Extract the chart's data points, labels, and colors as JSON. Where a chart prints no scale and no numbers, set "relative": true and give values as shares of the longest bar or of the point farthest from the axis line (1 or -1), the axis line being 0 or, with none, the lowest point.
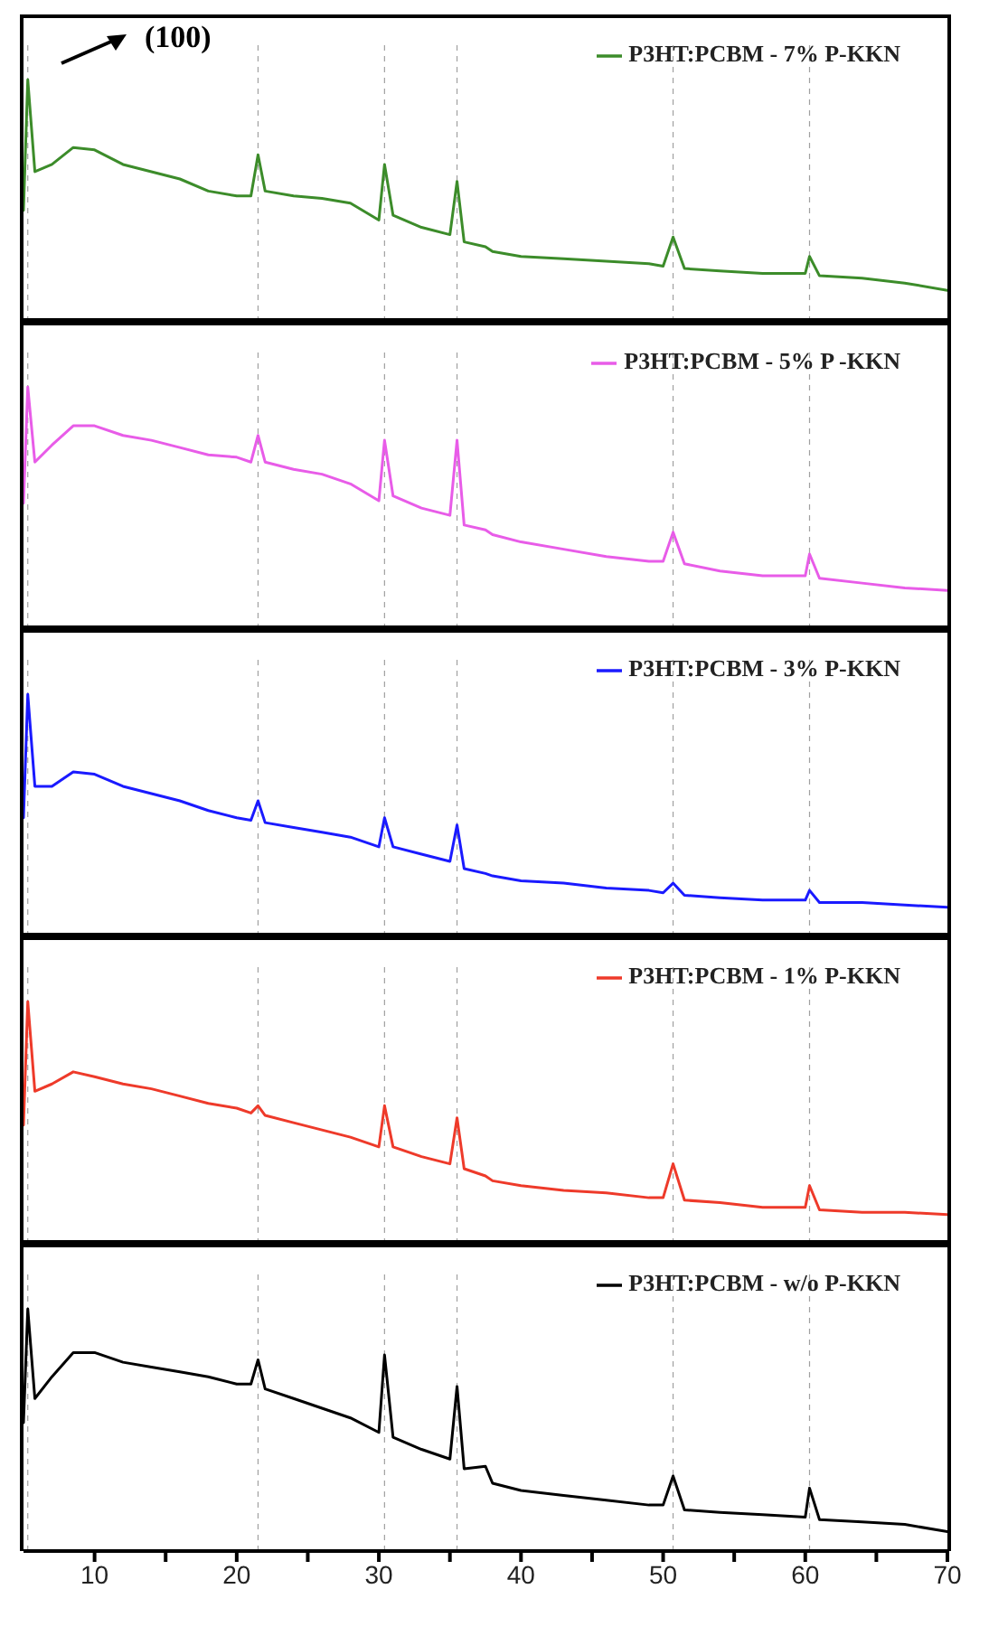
{
  "chart_data": [
    {
      "type": "line",
      "relative": true,
      "xlim": [
        5,
        70
      ],
      "tick_labels": false,
      "legend": "top right",
      "annotations": [
        "(100)"
      ],
      "ref_lines": [
        {
          "axis": "x",
          "value": 5.3,
          "color": "#888888",
          "line_style": "dashed"
        },
        {
          "axis": "x",
          "value": 21.5,
          "color": "#888888",
          "line_style": "dashed"
        },
        {
          "axis": "x",
          "value": 30.4,
          "color": "#888888",
          "line_style": "dashed"
        },
        {
          "axis": "x",
          "value": 35.5,
          "color": "#888888",
          "line_style": "dashed"
        },
        {
          "axis": "x",
          "value": 50.7,
          "color": "#888888",
          "line_style": "dashed"
        },
        {
          "axis": "x",
          "value": 60.3,
          "color": "#888888",
          "line_style": "dashed"
        }
      ],
      "series": [
        {
          "name": "P3HT:PCBM - 7% P-KKN",
          "color": "#3c8c2a",
          "x": [
            5,
            5.3,
            5.8,
            7,
            8.5,
            10,
            12,
            14,
            16,
            18,
            20,
            21,
            21.5,
            22,
            24,
            26,
            28,
            30,
            30.4,
            31,
            33,
            35,
            35.5,
            36,
            37.5,
            38,
            40,
            43,
            46,
            49,
            50,
            50.7,
            51.5,
            54,
            57,
            60,
            60.3,
            61,
            64,
            67,
            70
          ],
          "values": [
            0.46,
            1,
            0.62,
            0.65,
            0.72,
            0.71,
            0.65,
            0.62,
            0.59,
            0.54,
            0.52,
            0.52,
            0.69,
            0.54,
            0.52,
            0.51,
            0.49,
            0.42,
            0.65,
            0.44,
            0.39,
            0.36,
            0.58,
            0.33,
            0.31,
            0.29,
            0.27,
            0.26,
            0.25,
            0.24,
            0.23,
            0.35,
            0.22,
            0.21,
            0.2,
            0.2,
            0.27,
            0.19,
            0.18,
            0.16,
            0.13
          ]
        }
      ]
    },
    {
      "type": "line",
      "relative": true,
      "xlim": [
        5,
        70
      ],
      "tick_labels": false,
      "legend": "top right",
      "ref_lines": [
        {
          "axis": "x",
          "value": 5.3,
          "color": "#888888",
          "line_style": "dashed"
        },
        {
          "axis": "x",
          "value": 21.5,
          "color": "#888888",
          "line_style": "dashed"
        },
        {
          "axis": "x",
          "value": 30.4,
          "color": "#888888",
          "line_style": "dashed"
        },
        {
          "axis": "x",
          "value": 35.5,
          "color": "#888888",
          "line_style": "dashed"
        },
        {
          "axis": "x",
          "value": 50.7,
          "color": "#888888",
          "line_style": "dashed"
        },
        {
          "axis": "x",
          "value": 60.3,
          "color": "#888888",
          "line_style": "dashed"
        }
      ],
      "series": [
        {
          "name": "P3HT:PCBM - 5% P -KKN",
          "color": "#e85ce8",
          "x": [
            5,
            5.3,
            5.8,
            7,
            8.5,
            10,
            12,
            14,
            16,
            18,
            20,
            21,
            21.5,
            22,
            24,
            26,
            28,
            30,
            30.4,
            31,
            33,
            35,
            35.5,
            36,
            37.5,
            38,
            40,
            43,
            46,
            49,
            50,
            50.7,
            51.5,
            54,
            57,
            60,
            60.3,
            61,
            64,
            67,
            70
          ],
          "values": [
            0.52,
            1,
            0.69,
            0.76,
            0.84,
            0.84,
            0.8,
            0.78,
            0.75,
            0.72,
            0.71,
            0.69,
            0.8,
            0.69,
            0.66,
            0.64,
            0.6,
            0.53,
            0.78,
            0.55,
            0.5,
            0.47,
            0.78,
            0.43,
            0.41,
            0.39,
            0.36,
            0.33,
            0.3,
            0.28,
            0.28,
            0.4,
            0.27,
            0.24,
            0.22,
            0.22,
            0.31,
            0.21,
            0.19,
            0.17,
            0.16
          ]
        }
      ]
    },
    {
      "type": "line",
      "relative": true,
      "xlim": [
        5,
        70
      ],
      "tick_labels": false,
      "legend": "top right",
      "ref_lines": [
        {
          "axis": "x",
          "value": 5.3,
          "color": "#888888",
          "line_style": "dashed"
        },
        {
          "axis": "x",
          "value": 21.5,
          "color": "#888888",
          "line_style": "dashed"
        },
        {
          "axis": "x",
          "value": 30.4,
          "color": "#888888",
          "line_style": "dashed"
        },
        {
          "axis": "x",
          "value": 35.5,
          "color": "#888888",
          "line_style": "dashed"
        },
        {
          "axis": "x",
          "value": 50.7,
          "color": "#888888",
          "line_style": "dashed"
        },
        {
          "axis": "x",
          "value": 60.3,
          "color": "#888888",
          "line_style": "dashed"
        }
      ],
      "series": [
        {
          "name": "P3HT:PCBM - 3% P-KKN",
          "color": "#1a1aff",
          "x": [
            5,
            5.3,
            5.8,
            7,
            8.5,
            10,
            12,
            14,
            16,
            18,
            20,
            21,
            21.5,
            22,
            24,
            26,
            28,
            30,
            30.4,
            31,
            33,
            35,
            35.5,
            36,
            37.5,
            38,
            40,
            43,
            46,
            49,
            50,
            50.7,
            51.5,
            54,
            57,
            60,
            60.3,
            61,
            64,
            67,
            70
          ],
          "values": [
            0.49,
            1,
            0.62,
            0.62,
            0.68,
            0.67,
            0.62,
            0.59,
            0.56,
            0.52,
            0.49,
            0.48,
            0.56,
            0.47,
            0.45,
            0.43,
            0.41,
            0.37,
            0.49,
            0.37,
            0.34,
            0.31,
            0.46,
            0.28,
            0.26,
            0.25,
            0.23,
            0.22,
            0.2,
            0.19,
            0.18,
            0.22,
            0.17,
            0.16,
            0.15,
            0.15,
            0.19,
            0.14,
            0.14,
            0.13,
            0.12
          ]
        }
      ]
    },
    {
      "type": "line",
      "relative": true,
      "xlim": [
        5,
        70
      ],
      "tick_labels": false,
      "legend": "top right",
      "ref_lines": [
        {
          "axis": "x",
          "value": 5.3,
          "color": "#888888",
          "line_style": "dashed"
        },
        {
          "axis": "x",
          "value": 21.5,
          "color": "#888888",
          "line_style": "dashed"
        },
        {
          "axis": "x",
          "value": 30.4,
          "color": "#888888",
          "line_style": "dashed"
        },
        {
          "axis": "x",
          "value": 35.5,
          "color": "#888888",
          "line_style": "dashed"
        },
        {
          "axis": "x",
          "value": 50.7,
          "color": "#888888",
          "line_style": "dashed"
        },
        {
          "axis": "x",
          "value": 60.3,
          "color": "#888888",
          "line_style": "dashed"
        }
      ],
      "series": [
        {
          "name": "P3HT:PCBM - 1%  P-KKN",
          "color": "#ee3a2a",
          "x": [
            5,
            5.3,
            5.8,
            7,
            8.5,
            10,
            12,
            14,
            16,
            18,
            20,
            21,
            21.5,
            22,
            24,
            26,
            28,
            30,
            30.4,
            31,
            33,
            35,
            35.5,
            36,
            37.5,
            38,
            40,
            43,
            46,
            49,
            50,
            50.7,
            51.5,
            54,
            57,
            60,
            60.3,
            61,
            64,
            67,
            70
          ],
          "values": [
            0.49,
            1,
            0.63,
            0.66,
            0.71,
            0.69,
            0.66,
            0.64,
            0.61,
            0.58,
            0.56,
            0.54,
            0.57,
            0.53,
            0.5,
            0.47,
            0.44,
            0.4,
            0.57,
            0.4,
            0.36,
            0.33,
            0.52,
            0.31,
            0.28,
            0.26,
            0.24,
            0.22,
            0.21,
            0.19,
            0.19,
            0.33,
            0.18,
            0.17,
            0.15,
            0.15,
            0.24,
            0.14,
            0.13,
            0.13,
            0.12
          ]
        }
      ]
    },
    {
      "type": "line",
      "relative": true,
      "xlim": [
        5,
        70
      ],
      "xticks": [
        10,
        {
          "value": 15,
          "label": null
        },
        20,
        {
          "value": 25,
          "label": null
        },
        30,
        {
          "value": 35,
          "label": null
        },
        40,
        {
          "value": 45,
          "label": null
        },
        50,
        {
          "value": 55,
          "label": null
        },
        60,
        {
          "value": 65,
          "label": null
        },
        70
      ],
      "tick_labels": "x",
      "legend": "top right",
      "ref_lines": [
        {
          "axis": "x",
          "value": 5.3,
          "color": "#888888",
          "line_style": "dashed"
        },
        {
          "axis": "x",
          "value": 21.5,
          "color": "#888888",
          "line_style": "dashed"
        },
        {
          "axis": "x",
          "value": 30.4,
          "color": "#888888",
          "line_style": "dashed"
        },
        {
          "axis": "x",
          "value": 35.5,
          "color": "#888888",
          "line_style": "dashed"
        },
        {
          "axis": "x",
          "value": 50.7,
          "color": "#888888",
          "line_style": "dashed"
        },
        {
          "axis": "x",
          "value": 60.3,
          "color": "#888888",
          "line_style": "dashed"
        }
      ],
      "series": [
        {
          "name": "P3HT:PCBM - w/o P-KKN",
          "color": "#000000",
          "x": [
            5,
            5.3,
            5.8,
            7,
            8.5,
            10,
            12,
            14,
            16,
            18,
            20,
            21,
            21.5,
            22,
            24,
            26,
            28,
            30,
            30.4,
            31,
            33,
            35,
            35.5,
            36,
            37.5,
            38,
            40,
            43,
            46,
            49,
            50,
            50.7,
            51.5,
            54,
            57,
            60,
            60.3,
            61,
            64,
            67,
            70
          ],
          "values": [
            0.53,
            1,
            0.63,
            0.72,
            0.82,
            0.82,
            0.78,
            0.76,
            0.74,
            0.72,
            0.69,
            0.69,
            0.79,
            0.67,
            0.63,
            0.59,
            0.55,
            0.49,
            0.81,
            0.47,
            0.42,
            0.38,
            0.68,
            0.34,
            0.35,
            0.28,
            0.25,
            0.23,
            0.21,
            0.19,
            0.19,
            0.31,
            0.17,
            0.16,
            0.15,
            0.14,
            0.26,
            0.13,
            0.12,
            0.11,
            0.08
          ]
        }
      ]
    }
  ]
}
